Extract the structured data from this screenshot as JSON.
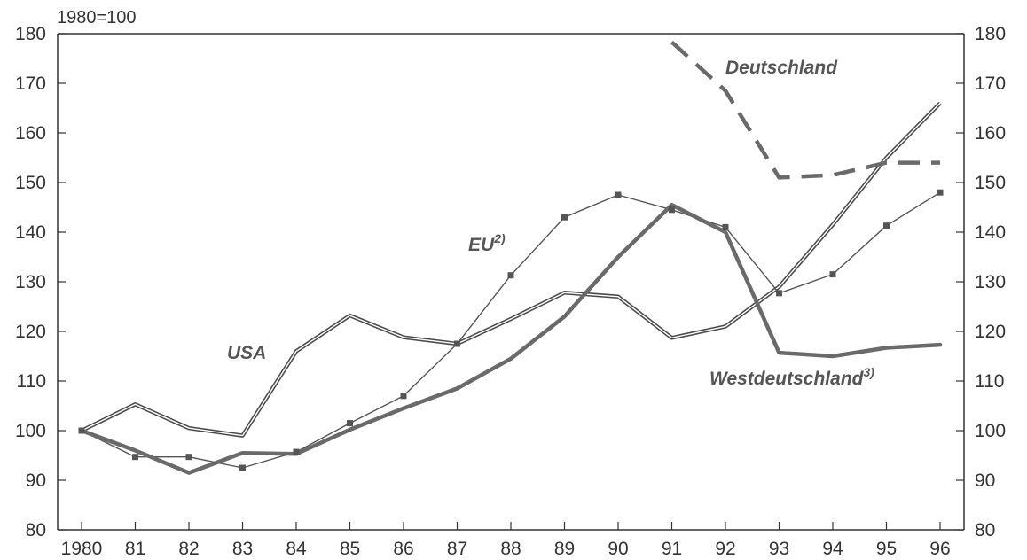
{
  "chart_data": {
    "type": "line",
    "unit_label": "1980=100",
    "x": [
      "1980",
      "81",
      "82",
      "83",
      "84",
      "85",
      "86",
      "87",
      "88",
      "89",
      "90",
      "91",
      "92",
      "93",
      "94",
      "95",
      "96"
    ],
    "ylim": [
      80,
      180
    ],
    "yticks": [
      80,
      90,
      100,
      110,
      120,
      130,
      140,
      150,
      160,
      170,
      180
    ],
    "grid": false,
    "secondary_y_axis": true,
    "colors": {
      "axis": "#333333",
      "usa": "#4a4a4a",
      "eu": "#555555",
      "west": "#6a6a6a",
      "deutschland": "#6a6a6a"
    },
    "series": [
      {
        "key": "usa",
        "name": "USA",
        "values": [
          100,
          105.3,
          100.5,
          99,
          116,
          123.2,
          118.8,
          117.5,
          122.5,
          127.8,
          127,
          118.7,
          121,
          129,
          141.5,
          155,
          166
        ]
      },
      {
        "key": "eu",
        "name": "EU",
        "name_sup": "2)",
        "values": [
          100,
          94.7,
          94.7,
          92.5,
          95.7,
          101.5,
          107,
          117.5,
          131.3,
          143,
          147.5,
          144.5,
          141,
          127.7,
          131.5,
          141.3,
          148
        ]
      },
      {
        "key": "west",
        "name": "Westdeutschland",
        "name_sup": "3)",
        "values": [
          100,
          96,
          91.5,
          95.5,
          95.3,
          100.2,
          104.5,
          108.5,
          114.5,
          123,
          135,
          145.5,
          140,
          115.7,
          115,
          116.7,
          117.3
        ]
      },
      {
        "key": "deutschland",
        "name": "Deutschland",
        "values": [
          null,
          null,
          null,
          null,
          null,
          null,
          null,
          null,
          null,
          null,
          null,
          178.3,
          168.5,
          151,
          151.5,
          154,
          154
        ]
      }
    ]
  }
}
